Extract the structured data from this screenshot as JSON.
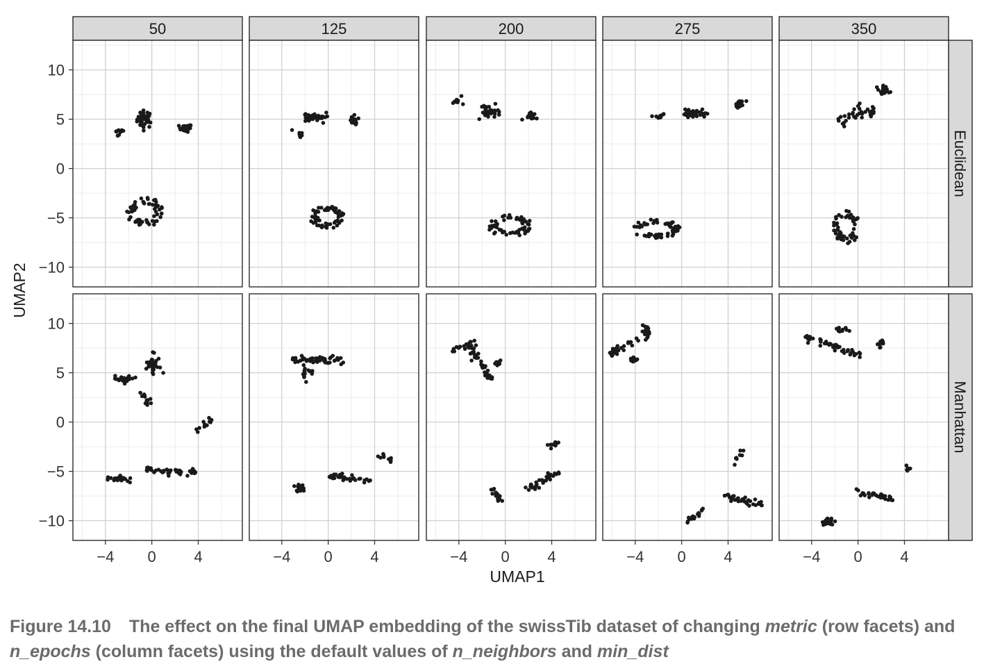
{
  "chart_data": {
    "type": "scatter",
    "xlabel": "UMAP1",
    "ylabel": "UMAP2",
    "col_facets": [
      "50",
      "125",
      "200",
      "275",
      "350"
    ],
    "row_facets": [
      "Euclidean",
      "Manhattan"
    ],
    "xlim": [
      -6.8,
      7.8
    ],
    "ylim": [
      -12,
      13
    ],
    "x_ticks": [
      -4,
      0,
      4
    ],
    "y_ticks": [
      10,
      5,
      0,
      -5,
      -10
    ],
    "x_tick_labels": [
      "−4",
      "0",
      "4"
    ],
    "y_tick_labels": [
      "10",
      "5",
      "0",
      "−5",
      "−10"
    ],
    "grid": true,
    "point_color": "#1a1a1a",
    "panels": [
      {
        "row": "Euclidean",
        "col": "50",
        "clusters": [
          {
            "shape": "blob",
            "x": -0.6,
            "y": 5.0,
            "sx": 0.6,
            "sy": 0.8,
            "n": 40
          },
          {
            "shape": "blob",
            "x": 2.9,
            "y": 4.1,
            "sx": 0.5,
            "sy": 0.35,
            "n": 24
          },
          {
            "shape": "line",
            "x0": -3.3,
            "y0": 3.4,
            "x1": -2.6,
            "y1": 3.8,
            "n": 9
          },
          {
            "shape": "ring",
            "x": -0.6,
            "y": -4.4,
            "rx": 1.6,
            "ry": 1.5,
            "n": 60
          }
        ]
      },
      {
        "row": "Euclidean",
        "col": "125",
        "clusters": [
          {
            "shape": "blob",
            "x": -1.2,
            "y": 5.2,
            "sx": 0.8,
            "sy": 0.45,
            "n": 40
          },
          {
            "shape": "blob",
            "x": 2.2,
            "y": 4.8,
            "sx": 0.4,
            "sy": 0.4,
            "n": 22
          },
          {
            "shape": "line",
            "x0": -2.7,
            "y0": 3.7,
            "x1": -2.2,
            "y1": 3.1,
            "n": 8
          },
          {
            "shape": "ring",
            "x": 0.0,
            "y": -4.9,
            "rx": 1.6,
            "ry": 1.2,
            "n": 60
          }
        ]
      },
      {
        "row": "Euclidean",
        "col": "200",
        "clusters": [
          {
            "shape": "line",
            "x0": -4.6,
            "y0": 6.7,
            "x1": -3.6,
            "y1": 7.0,
            "n": 9
          },
          {
            "shape": "blob",
            "x": -1.3,
            "y": 5.8,
            "sx": 0.8,
            "sy": 0.5,
            "n": 40
          },
          {
            "shape": "blob",
            "x": 2.2,
            "y": 5.3,
            "sx": 0.4,
            "sy": 0.4,
            "n": 20
          },
          {
            "shape": "ring",
            "x": 0.4,
            "y": -5.8,
            "rx": 2.0,
            "ry": 1.1,
            "n": 60
          }
        ]
      },
      {
        "row": "Euclidean",
        "col": "275",
        "clusters": [
          {
            "shape": "line",
            "x0": -2.5,
            "y0": 5.2,
            "x1": -1.6,
            "y1": 5.4,
            "n": 9
          },
          {
            "shape": "blob",
            "x": 1.0,
            "y": 5.6,
            "sx": 1.0,
            "sy": 0.4,
            "n": 40
          },
          {
            "shape": "blob",
            "x": 5.0,
            "y": 6.5,
            "sx": 0.35,
            "sy": 0.4,
            "n": 22
          },
          {
            "shape": "ring",
            "x": -2.2,
            "y": -6.1,
            "rx": 2.1,
            "ry": 1.0,
            "n": 60
          }
        ]
      },
      {
        "row": "Euclidean",
        "col": "350",
        "clusters": [
          {
            "shape": "blob",
            "x": 2.2,
            "y": 7.9,
            "sx": 0.35,
            "sy": 0.45,
            "n": 24
          },
          {
            "shape": "arc",
            "x": 0.0,
            "y": 5.0,
            "n": 36
          },
          {
            "shape": "ring",
            "x": -1.0,
            "y": -5.9,
            "rx": 1.2,
            "ry": 1.7,
            "n": 60
          }
        ]
      },
      {
        "row": "Manhattan",
        "col": "50",
        "clusters": [
          {
            "shape": "blob",
            "x": 0.1,
            "y": 5.7,
            "sx": 0.6,
            "sy": 0.9,
            "n": 34
          },
          {
            "shape": "blob",
            "x": -2.4,
            "y": 4.3,
            "sx": 0.7,
            "sy": 0.35,
            "n": 24
          },
          {
            "shape": "line",
            "x0": -1.1,
            "y0": 3.2,
            "x1": -0.3,
            "y1": 1.9,
            "n": 12
          },
          {
            "shape": "line",
            "x0": 3.9,
            "y0": -1.0,
            "x1": 5.1,
            "y1": 0.3,
            "n": 12
          },
          {
            "shape": "line",
            "x0": -4.1,
            "y0": -5.6,
            "x1": -1.9,
            "y1": -5.8,
            "n": 22
          },
          {
            "shape": "line",
            "x0": -0.5,
            "y0": -4.8,
            "x1": 3.9,
            "y1": -5.1,
            "n": 40
          }
        ]
      },
      {
        "row": "Manhattan",
        "col": "125",
        "clusters": [
          {
            "shape": "line",
            "x0": -3.3,
            "y0": 6.3,
            "x1": 1.2,
            "y1": 6.4,
            "n": 44
          },
          {
            "shape": "blob",
            "x": -1.8,
            "y": 5.0,
            "sx": 0.6,
            "sy": 0.6,
            "n": 16
          },
          {
            "shape": "line",
            "x0": 4.3,
            "y0": -3.4,
            "x1": 5.5,
            "y1": -3.9,
            "n": 9
          },
          {
            "shape": "blob",
            "x": -2.5,
            "y": -6.8,
            "sx": 0.4,
            "sy": 0.35,
            "n": 18
          },
          {
            "shape": "line",
            "x0": 0.0,
            "y0": -5.4,
            "x1": 3.7,
            "y1": -6.0,
            "n": 32
          }
        ]
      },
      {
        "row": "Manhattan",
        "col": "200",
        "clusters": [
          {
            "shape": "line",
            "x0": -4.6,
            "y0": 7.2,
            "x1": -2.5,
            "y1": 8.0,
            "n": 18
          },
          {
            "shape": "line",
            "x0": -3.0,
            "y0": 7.4,
            "x1": -1.2,
            "y1": 4.3,
            "n": 32
          },
          {
            "shape": "blob",
            "x": -0.6,
            "y": 5.9,
            "sx": 0.4,
            "sy": 0.35,
            "n": 8
          },
          {
            "shape": "line",
            "x0": 3.9,
            "y0": -2.4,
            "x1": 4.6,
            "y1": -2.1,
            "n": 8
          },
          {
            "shape": "line",
            "x0": -1.2,
            "y0": -6.8,
            "x1": -0.3,
            "y1": -8.0,
            "n": 16
          },
          {
            "shape": "line",
            "x0": 1.5,
            "y0": -7.0,
            "x1": 4.6,
            "y1": -5.1,
            "n": 30
          }
        ]
      },
      {
        "row": "Manhattan",
        "col": "275",
        "clusters": [
          {
            "shape": "line",
            "x0": -6.3,
            "y0": 6.8,
            "x1": -3.8,
            "y1": 8.3,
            "n": 26
          },
          {
            "shape": "blob",
            "x": -3.0,
            "y": 9.2,
            "sx": 0.4,
            "sy": 0.5,
            "n": 24
          },
          {
            "shape": "blob",
            "x": -4.2,
            "y": 6.3,
            "sx": 0.4,
            "sy": 0.3,
            "n": 10
          },
          {
            "shape": "line",
            "x0": 4.6,
            "y0": -3.9,
            "x1": 5.3,
            "y1": -3.1,
            "n": 8
          },
          {
            "shape": "line",
            "x0": 0.4,
            "y0": -10.1,
            "x1": 1.9,
            "y1": -9.0,
            "n": 18
          },
          {
            "shape": "line",
            "x0": 4.0,
            "y0": -7.6,
            "x1": 7.0,
            "y1": -8.4,
            "n": 34
          }
        ]
      },
      {
        "row": "Manhattan",
        "col": "350",
        "clusters": [
          {
            "shape": "line",
            "x0": -4.5,
            "y0": 8.7,
            "x1": 0.2,
            "y1": 6.7,
            "n": 44
          },
          {
            "shape": "blob",
            "x": -1.5,
            "y": 9.3,
            "sx": 0.5,
            "sy": 0.35,
            "n": 14
          },
          {
            "shape": "blob",
            "x": 1.9,
            "y": 8.0,
            "sx": 0.3,
            "sy": 0.35,
            "n": 10
          },
          {
            "shape": "line",
            "x0": 4.1,
            "y0": -4.2,
            "x1": 4.4,
            "y1": -4.8,
            "n": 6
          },
          {
            "shape": "blob",
            "x": -2.6,
            "y": -10.1,
            "sx": 0.5,
            "sy": 0.3,
            "n": 22
          },
          {
            "shape": "line",
            "x0": 0.0,
            "y0": -7.1,
            "x1": 3.0,
            "y1": -7.8,
            "n": 30
          }
        ]
      }
    ]
  },
  "caption": {
    "figure_label": "Figure 14.10",
    "t1": "The effect on the final UMAP embedding of the swissTib dataset of changing ",
    "t2": "metric",
    "t3": " (row facets) and ",
    "t4": "n_epochs",
    "t5": " (column facets) using the default values of ",
    "t6": "n_neighbors",
    "t7": " and ",
    "t8": "min_dist"
  }
}
